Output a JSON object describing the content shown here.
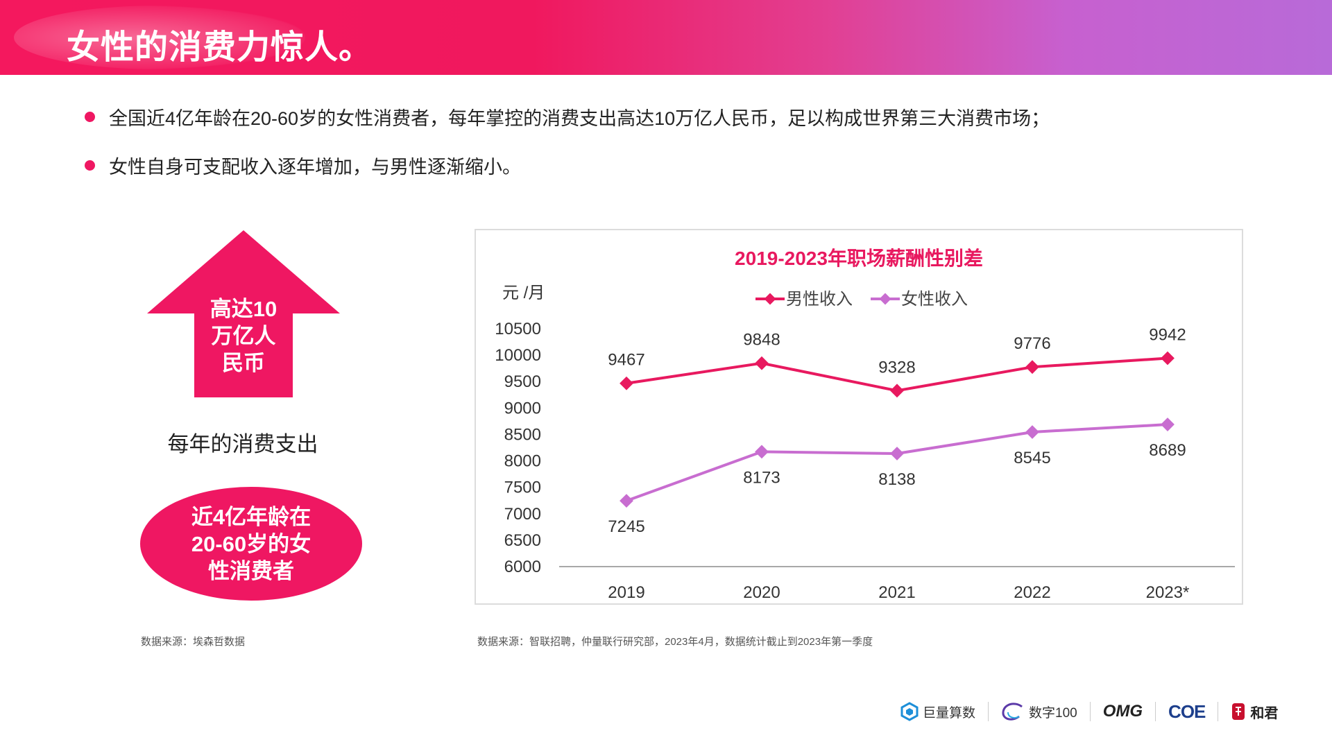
{
  "header": {
    "title": "女性的消费力惊人。"
  },
  "bullets": [
    "全国近4亿年龄在20-60岁的女性消费者，每年掌控的消费支出高达10万亿人民币，足以构成世界第三大消费市场；",
    "女性自身可支配收入逐年增加，与男性逐渐缩小。"
  ],
  "infographic": {
    "arrow_lines": [
      "高达10",
      "万亿人",
      "民币"
    ],
    "arrow_caption": "每年的消费支出",
    "ellipse_lines": [
      "近4亿年龄在",
      "20-60岁的女",
      "性消费者"
    ],
    "source": "数据来源：埃森哲数据"
  },
  "chart_source": "数据来源：智联招聘，仲量联行研究部，2023年4月，数据统计截止到2023年第一季度",
  "chart_data": {
    "type": "line",
    "title": "2019-2023年职场薪酬性别差",
    "ylabel": "元 /月",
    "xlabel": "",
    "categories": [
      "2019",
      "2020",
      "2021",
      "2022",
      "2023*"
    ],
    "ylim": [
      6000,
      10500
    ],
    "yticks": [
      6000,
      6500,
      7000,
      7500,
      8000,
      8500,
      9000,
      9500,
      10000,
      10500
    ],
    "legend_position": "top-center",
    "grid": false,
    "series": [
      {
        "name": "男性收入",
        "values": [
          9467,
          9848,
          9328,
          9776,
          9942
        ],
        "color": "#e8195f",
        "label_position": "above"
      },
      {
        "name": "女性收入",
        "values": [
          7245,
          8173,
          8138,
          8545,
          8689
        ],
        "color": "#c86dd0",
        "label_position": "below"
      }
    ]
  },
  "logos": [
    {
      "name": "巨量算数",
      "icon": "hexagon-logo-icon"
    },
    {
      "name": "数字100",
      "icon": "swirl-logo-icon"
    },
    {
      "name": "OMG",
      "icon": "omg-wordmark"
    },
    {
      "name": "COE",
      "icon": "coe-wordmark"
    },
    {
      "name": "和君",
      "icon": "seal-logo-icon"
    }
  ],
  "colors": {
    "accent": "#ef1762",
    "female": "#c86dd0",
    "male": "#e8195f"
  }
}
